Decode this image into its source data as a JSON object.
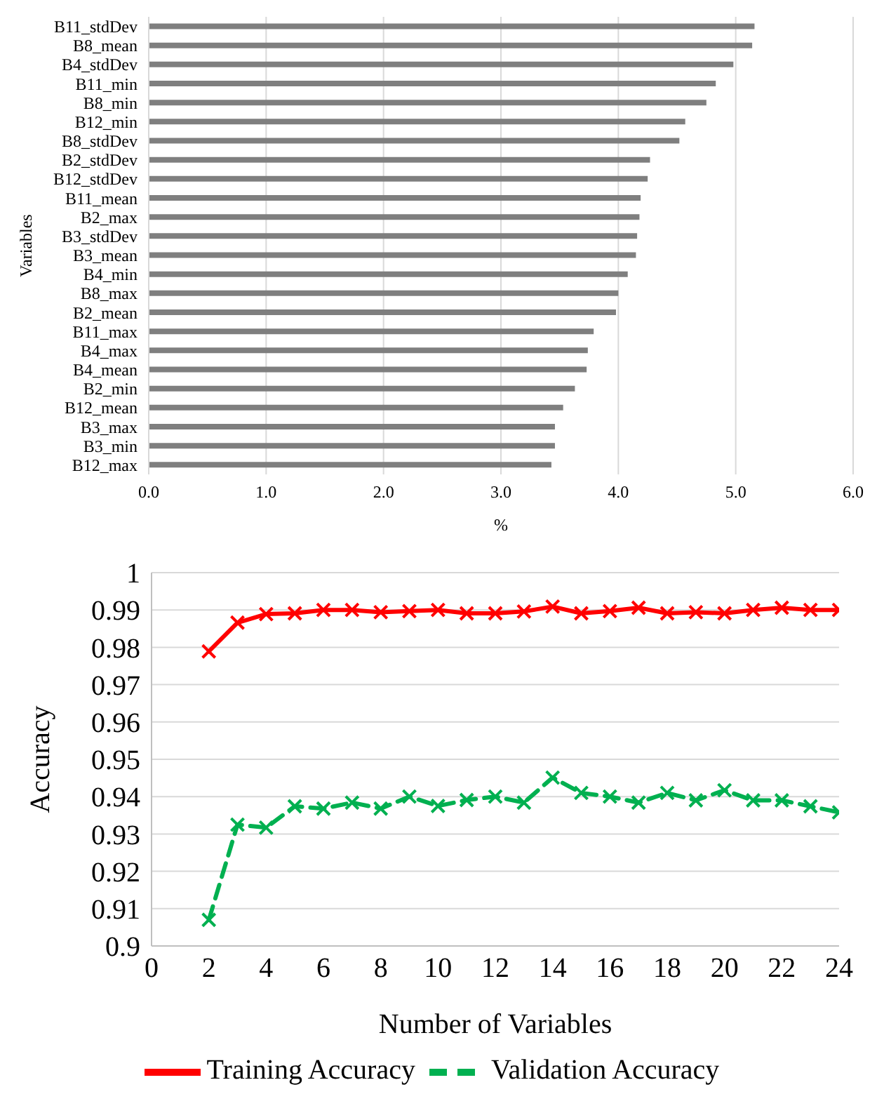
{
  "chart_data": [
    {
      "type": "bar",
      "orientation": "horizontal",
      "xlabel": "%",
      "ylabel": "Variables",
      "categories": [
        "B11_stdDev",
        "B8_mean",
        "B4_stdDev",
        "B11_min",
        "B8_min",
        "B12_min",
        "B8_stdDev",
        "B2_stdDev",
        "B12_stdDev",
        "B11_mean",
        "B2_max",
        "B3_stdDev",
        "B3_mean",
        "B4_min",
        "B8_max",
        "B2_mean",
        "B11_max",
        "B4_max",
        "B4_mean",
        "B2_min",
        "B12_mean",
        "B3_max",
        "B3_min",
        "B12_max"
      ],
      "values": [
        5.16,
        5.14,
        4.98,
        4.83,
        4.75,
        4.57,
        4.52,
        4.27,
        4.25,
        4.19,
        4.18,
        4.16,
        4.15,
        4.08,
        4.0,
        3.98,
        3.79,
        3.74,
        3.73,
        3.63,
        3.53,
        3.46,
        3.46,
        3.43
      ],
      "color": "#7f7f7f",
      "xlim": [
        0,
        6
      ],
      "xticks": [
        {
          "value": 0,
          "label": "0.0"
        },
        {
          "value": 1,
          "label": "1.0"
        },
        {
          "value": 2,
          "label": "2.0"
        },
        {
          "value": 3,
          "label": "3.0"
        },
        {
          "value": 4,
          "label": "4.0"
        },
        {
          "value": 5,
          "label": "5.0"
        },
        {
          "value": 6,
          "label": "6.0"
        }
      ],
      "grid": "x"
    },
    {
      "type": "line",
      "xlabel": "Number of Variables",
      "ylabel": "Accuracy",
      "x": [
        2,
        3,
        4,
        5,
        6,
        7,
        8,
        9,
        10,
        11,
        12,
        13,
        14,
        15,
        16,
        17,
        18,
        19,
        20,
        21,
        22,
        23,
        24
      ],
      "series": [
        {
          "name": "Training Accuracy",
          "color": "#ff0000",
          "line_style": "solid",
          "values": [
            0.9789,
            0.9866,
            0.9889,
            0.9891,
            0.99,
            0.99,
            0.9894,
            0.9897,
            0.99,
            0.9891,
            0.9891,
            0.9896,
            0.9909,
            0.9891,
            0.9897,
            0.9906,
            0.9891,
            0.9894,
            0.9891,
            0.99,
            0.9906,
            0.99,
            0.99
          ]
        },
        {
          "name": "Validation Accuracy",
          "color": "#00b050",
          "line_style": "dashed",
          "values": [
            0.907,
            0.9325,
            0.9317,
            0.9374,
            0.9368,
            0.9384,
            0.9368,
            0.94,
            0.9375,
            0.9391,
            0.94,
            0.9384,
            0.9451,
            0.941,
            0.94,
            0.9384,
            0.941,
            0.939,
            0.9417,
            0.939,
            0.939,
            0.9374,
            0.9358
          ]
        }
      ],
      "xlim": [
        0,
        24
      ],
      "xticks": [
        0,
        2,
        4,
        6,
        8,
        10,
        12,
        14,
        16,
        18,
        20,
        22,
        24
      ],
      "ylim": [
        0.9,
        1
      ],
      "yticks": [
        0.9,
        0.91,
        0.92,
        0.93,
        0.94,
        0.95,
        0.96,
        0.97,
        0.98,
        0.99,
        1
      ],
      "grid": "y",
      "marker": "cross",
      "legend": "bottom"
    }
  ]
}
